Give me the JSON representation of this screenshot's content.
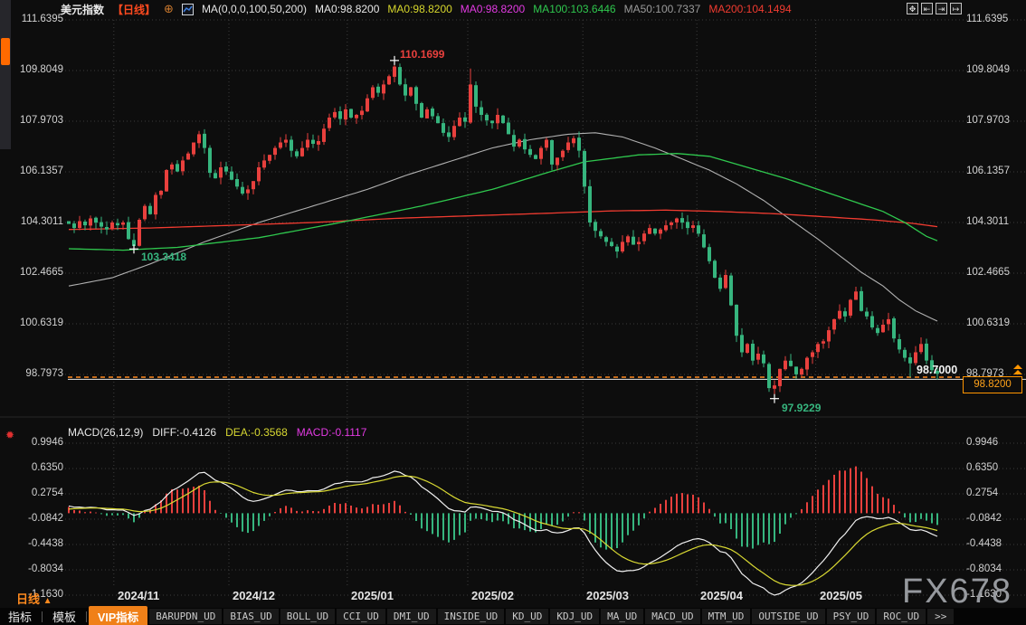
{
  "header": {
    "symbol": "美元指数",
    "period_tag": "【日线】",
    "circle_plus_glyph": "⊕",
    "ma_settings": "MA(0,0,0,100,50,200)",
    "ma_values": [
      {
        "label": "MA0:98.8200",
        "color": "#e8e8e8"
      },
      {
        "label": "MA0:98.8200",
        "color": "#d6d62c"
      },
      {
        "label": "MA0:98.8200",
        "color": "#e23ae2"
      },
      {
        "label": "MA100:103.6446",
        "color": "#2fc84e"
      },
      {
        "label": "MA50:100.7337",
        "color": "#9a9a9a"
      },
      {
        "label": "MA200:104.1494",
        "color": "#f03b30"
      }
    ]
  },
  "toolbar": {
    "icons": [
      {
        "name": "pan-icon",
        "glyph": "✥"
      },
      {
        "name": "scale-left-icon",
        "glyph": "⇤"
      },
      {
        "name": "scale-right-icon",
        "glyph": "⇥"
      },
      {
        "name": "shift-right-icon",
        "glyph": "↦"
      }
    ]
  },
  "main_axis": {
    "labels": [
      "111.6395",
      "109.8049",
      "107.9703",
      "106.1357",
      "104.3011",
      "102.4665",
      "100.6319",
      "98.7973"
    ]
  },
  "annotations": {
    "high_label": "110.1699",
    "low_left_label": "103.3418",
    "low_main_label": "97.9229",
    "hline_label": "98.7000",
    "price_tag": "98.8200"
  },
  "macd": {
    "burst_glyph": "✹",
    "title": "MACD(26,12,9)",
    "items": [
      {
        "label": "DIFF:-0.4126",
        "color": "#e8e8e8"
      },
      {
        "label": "DEA:-0.3568",
        "color": "#d8d832"
      },
      {
        "label": "MACD:-0.1117",
        "color": "#e23ae2"
      }
    ],
    "axis_labels": [
      "0.9946",
      "0.6350",
      "0.2754",
      "-0.0842",
      "-0.4438",
      "-0.8034",
      "-1.1630"
    ]
  },
  "xaxis": {
    "period_label": "日线",
    "period_arrow": "▲",
    "dates": [
      "2024/11",
      "2024/12",
      "2025/01",
      "2025/02",
      "2025/03",
      "2025/04",
      "2025/05"
    ]
  },
  "bottom_bar": {
    "tabs": [
      "指标",
      "模板"
    ],
    "vip_tab": "VIP指标",
    "indicators": [
      "BARUPDN_UD",
      "BIAS_UD",
      "BOLL_UD",
      "CCI_UD",
      "DMI_UD",
      "INSIDE_UD",
      "KD_UD",
      "KDJ_UD",
      "MA_UD",
      "MACD_UD",
      "MTM_UD",
      "OUTSIDE_UD",
      "PSY_UD",
      "ROC_UD"
    ],
    "more_label": ">>"
  },
  "watermark": "FX678",
  "colors": {
    "up": "#e8403d",
    "down": "#36b57e",
    "ma100": "#2fc84e",
    "ma50": "#b0b0b0",
    "ma200": "#f03b30",
    "diff_line": "#f0f0f0",
    "dea_line": "#d8d832",
    "accent_orange": "#ff8a1e",
    "grid": "#3c3c3c",
    "background": "#0d0d0d"
  },
  "chart_data": {
    "type": "candlestick+macd",
    "title": "美元指数 日线",
    "ylim": [
      97.3,
      111.6395
    ],
    "y_tick_values": [
      111.6395,
      109.8049,
      107.9703,
      106.1357,
      104.3011,
      102.4665,
      100.6319,
      98.7973
    ],
    "macd_tick_values": [
      0.9946,
      0.635,
      0.2754,
      -0.0842,
      -0.4438,
      -0.8034,
      -1.163
    ],
    "month_grid_indices": [
      8.3,
      29.5,
      51.3,
      73.5,
      94.7,
      115.7,
      137.6
    ],
    "first_open": 104.35,
    "closes": [
      104.25,
      104.1,
      104.35,
      104.2,
      104.45,
      104.3,
      104.15,
      104.05,
      104.3,
      104.2,
      104.3,
      103.7,
      103.45,
      104.4,
      104.9,
      104.6,
      105.3,
      105.45,
      106.2,
      106.4,
      106.15,
      106.55,
      106.8,
      107.2,
      107.5,
      107.0,
      106.1,
      105.9,
      106.3,
      106.15,
      105.85,
      105.6,
      105.35,
      105.5,
      105.8,
      106.3,
      106.55,
      106.75,
      107.0,
      107.2,
      107.3,
      106.9,
      106.7,
      107.0,
      107.3,
      107.15,
      107.25,
      107.7,
      108.1,
      108.3,
      108.05,
      108.4,
      108.1,
      108.2,
      108.35,
      108.8,
      109.2,
      109.0,
      109.3,
      109.6,
      109.95,
      109.3,
      108.9,
      109.2,
      108.6,
      108.1,
      108.4,
      108.15,
      107.9,
      107.55,
      107.4,
      107.8,
      108.1,
      107.95,
      109.3,
      108.5,
      108.2,
      108.0,
      107.9,
      108.2,
      107.9,
      107.5,
      107.05,
      107.3,
      106.95,
      106.75,
      106.6,
      107.0,
      107.3,
      106.4,
      106.65,
      106.9,
      107.2,
      107.35,
      106.9,
      105.6,
      104.3,
      104.0,
      103.8,
      103.6,
      103.45,
      103.25,
      103.6,
      103.8,
      103.5,
      103.6,
      103.9,
      104.1,
      103.9,
      104.05,
      104.2,
      104.3,
      104.45,
      104.3,
      104.1,
      104.2,
      103.9,
      103.4,
      102.9,
      102.3,
      101.9,
      102.4,
      101.3,
      100.2,
      99.6,
      99.9,
      99.3,
      99.55,
      99.2,
      98.3,
      98.4,
      99.0,
      99.3,
      99.1,
      98.8,
      99.0,
      99.4,
      99.6,
      99.9,
      100.0,
      100.4,
      100.8,
      101.1,
      100.9,
      101.5,
      101.8,
      101.1,
      100.9,
      100.5,
      100.3,
      100.6,
      100.8,
      100.1,
      99.7,
      99.4,
      99.2,
      99.6,
      99.9,
      99.3,
      98.95,
      98.82
    ],
    "extremes": {
      "12": {
        "low": 103.3418
      },
      "24": {
        "high": 107.62
      },
      "60": {
        "high": 110.1699
      },
      "74": {
        "high": 109.88
      },
      "130": {
        "low": 97.9229
      },
      "155": {
        "low": 98.7
      },
      "160": {
        "low": 98.6
      }
    },
    "levels": {
      "orange_dashed": 98.7,
      "white_solid": 98.62
    },
    "ma_lines": {
      "ma100": [
        [
          0,
          103.35
        ],
        [
          10,
          103.3
        ],
        [
          20,
          103.4
        ],
        [
          35,
          103.75
        ],
        [
          50,
          104.3
        ],
        [
          65,
          104.9
        ],
        [
          78,
          105.5
        ],
        [
          88,
          106.1
        ],
        [
          95,
          106.5
        ],
        [
          105,
          106.75
        ],
        [
          112,
          106.8
        ],
        [
          118,
          106.7
        ],
        [
          125,
          106.3
        ],
        [
          132,
          105.9
        ],
        [
          138,
          105.5
        ],
        [
          144,
          105.1
        ],
        [
          150,
          104.7
        ],
        [
          154,
          104.3
        ],
        [
          158,
          103.8
        ],
        [
          160,
          103.64
        ]
      ],
      "ma50": [
        [
          0,
          102.0
        ],
        [
          8,
          102.3
        ],
        [
          15,
          102.8
        ],
        [
          25,
          103.6
        ],
        [
          35,
          104.3
        ],
        [
          45,
          104.9
        ],
        [
          55,
          105.5
        ],
        [
          62,
          106.0
        ],
        [
          70,
          106.5
        ],
        [
          78,
          107.0
        ],
        [
          85,
          107.3
        ],
        [
          92,
          107.5
        ],
        [
          97,
          107.55
        ],
        [
          102,
          107.4
        ],
        [
          108,
          107.0
        ],
        [
          113,
          106.6
        ],
        [
          118,
          106.2
        ],
        [
          123,
          105.7
        ],
        [
          128,
          105.1
        ],
        [
          133,
          104.4
        ],
        [
          138,
          103.7
        ],
        [
          142,
          103.1
        ],
        [
          146,
          102.5
        ],
        [
          150,
          102.0
        ],
        [
          153,
          101.5
        ],
        [
          156,
          101.1
        ],
        [
          160,
          100.73
        ]
      ],
      "ma200": [
        [
          0,
          104.05
        ],
        [
          15,
          104.1
        ],
        [
          30,
          104.2
        ],
        [
          45,
          104.3
        ],
        [
          60,
          104.45
        ],
        [
          75,
          104.55
        ],
        [
          90,
          104.65
        ],
        [
          100,
          104.72
        ],
        [
          110,
          104.75
        ],
        [
          120,
          104.7
        ],
        [
          130,
          104.62
        ],
        [
          140,
          104.5
        ],
        [
          148,
          104.4
        ],
        [
          155,
          104.28
        ],
        [
          160,
          104.15
        ]
      ]
    },
    "macd_params": {
      "fast": 12,
      "slow": 26,
      "signal": 9
    }
  }
}
